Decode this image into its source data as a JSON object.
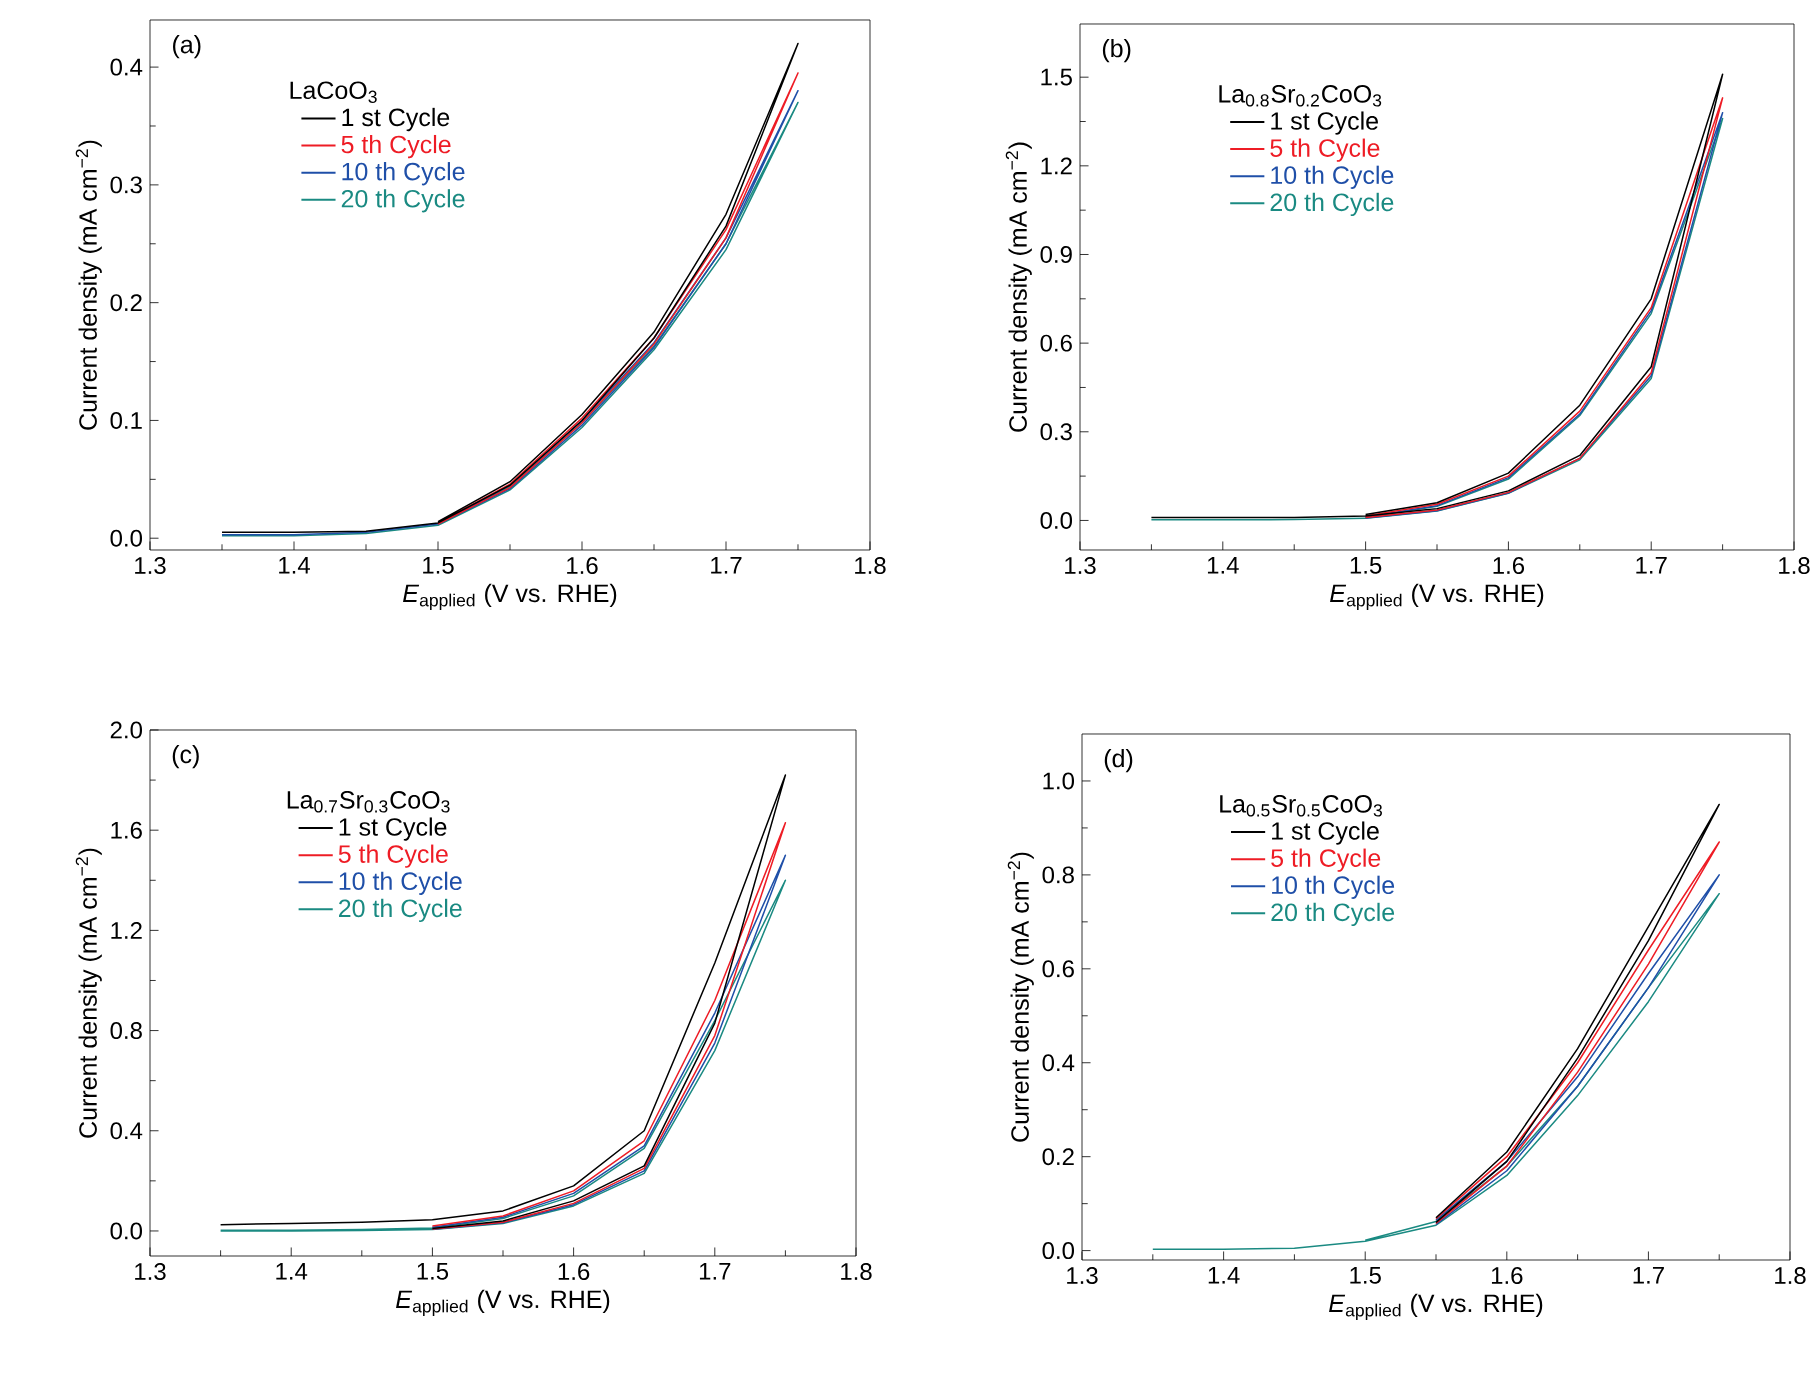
{
  "chart_data": [
    {
      "type": "line",
      "annotations": [
        "(a)"
      ],
      "legend_title": "LaCoO$_{3}$",
      "xlabel": "*E*$_{applied}$ (V vs. RHE)",
      "ylabel": "Current density (mA cm$^{−2}$)",
      "xlim": [
        1.3,
        1.8
      ],
      "ylim": [
        -0.01,
        0.44
      ],
      "xticks": [
        1.3,
        1.4,
        1.5,
        1.6,
        1.7,
        1.8
      ],
      "yticks": [
        {
          "value": 0,
          "label": "0.0"
        },
        0.1,
        0.2,
        0.3,
        0.4
      ],
      "legend": "top left",
      "line_style": "solid",
      "marker": "none",
      "x": [
        1.35,
        1.4,
        1.45,
        1.5,
        1.55,
        1.6,
        1.65,
        1.7,
        1.75,
        1.7,
        1.65,
        1.6,
        1.55,
        1.5
      ],
      "series": [
        {
          "name": "1 st Cycle",
          "color": "#000000",
          "values": [
            0.005,
            0.005,
            0.006,
            0.013,
            0.045,
            0.1,
            0.17,
            0.265,
            0.42,
            0.275,
            0.175,
            0.105,
            0.048,
            0.014
          ]
        },
        {
          "name": "5 th Cycle",
          "color": "#ee1c25",
          "values": [
            null,
            null,
            null,
            0.012,
            0.043,
            0.098,
            0.165,
            0.255,
            0.395,
            0.262,
            0.17,
            0.102,
            0.046,
            0.013
          ]
        },
        {
          "name": "10 th Cycle",
          "color": "#1f4fa8",
          "values": [
            0.003,
            0.003,
            0.005,
            0.012,
            0.042,
            0.096,
            0.162,
            0.25,
            0.38,
            0.255,
            0.166,
            0.1,
            0.045,
            0.012
          ]
        },
        {
          "name": "20 th Cycle",
          "color": "#1a8a82",
          "values": [
            0.002,
            0.002,
            0.004,
            0.011,
            0.041,
            0.094,
            0.16,
            0.245,
            0.37,
            0.25,
            0.163,
            0.098,
            0.044,
            0.011
          ]
        }
      ]
    },
    {
      "type": "line",
      "annotations": [
        "(b)"
      ],
      "legend_title": "La$_{0.8}$Sr$_{0.2}$CoO$_{3}$",
      "xlabel": "*E*$_{applied}$ (V vs. RHE)",
      "ylabel": "Current density (mA cm$^{−2}$)",
      "xlim": [
        1.3,
        1.8
      ],
      "ylim": [
        -0.1,
        1.68
      ],
      "xticks": [
        1.3,
        1.4,
        1.5,
        1.6,
        1.7,
        1.8
      ],
      "yticks": [
        {
          "value": 0,
          "label": "0.0"
        },
        0.3,
        0.6,
        0.9,
        1.2,
        1.5
      ],
      "legend": "top left",
      "line_style": "solid",
      "marker": "none",
      "x": [
        1.35,
        1.4,
        1.45,
        1.5,
        1.55,
        1.6,
        1.65,
        1.7,
        1.75,
        1.7,
        1.65,
        1.6,
        1.55,
        1.5
      ],
      "series": [
        {
          "name": "1 st Cycle",
          "color": "#000000",
          "values": [
            0.01,
            0.01,
            0.01,
            0.015,
            0.04,
            0.1,
            0.22,
            0.52,
            1.51,
            0.75,
            0.39,
            0.16,
            0.06,
            0.02
          ]
        },
        {
          "name": "5 th Cycle",
          "color": "#ee1c25",
          "values": [
            null,
            null,
            null,
            0.01,
            0.035,
            0.095,
            0.21,
            0.5,
            1.43,
            0.72,
            0.37,
            0.15,
            0.055,
            0.015
          ]
        },
        {
          "name": "10 th Cycle",
          "color": "#1f4fa8",
          "values": [
            null,
            null,
            null,
            0.008,
            0.033,
            0.093,
            0.21,
            0.49,
            1.38,
            0.71,
            0.36,
            0.145,
            0.05,
            0.012
          ]
        },
        {
          "name": "20 th Cycle",
          "color": "#1a8a82",
          "values": [
            0.002,
            0.002,
            0.003,
            0.007,
            0.032,
            0.092,
            0.205,
            0.48,
            1.36,
            0.7,
            0.355,
            0.14,
            0.048,
            0.01
          ]
        }
      ]
    },
    {
      "type": "line",
      "annotations": [
        "(c)"
      ],
      "legend_title": "La$_{0.7}$Sr$_{0.3}$CoO$_{3}$",
      "xlabel": "*E*$_{applied}$ (V vs. RHE)",
      "ylabel": "Current density (mA cm$^{−2}$)",
      "xlim": [
        1.3,
        1.8
      ],
      "ylim": [
        -0.1,
        2.0
      ],
      "xticks": [
        1.3,
        1.4,
        1.5,
        1.6,
        1.7,
        1.8
      ],
      "yticks": [
        {
          "value": 0,
          "label": "0.0"
        },
        0.4,
        0.8,
        1.2,
        1.6,
        {
          "value": 2,
          "label": "2.0"
        }
      ],
      "legend": "top left",
      "line_style": "solid",
      "marker": "none",
      "x": [
        1.35,
        1.4,
        1.45,
        1.5,
        1.55,
        1.6,
        1.65,
        1.7,
        1.75,
        1.7,
        1.65,
        1.6,
        1.55,
        1.5,
        1.45,
        1.4,
        1.35
      ],
      "series": [
        {
          "name": "1 st Cycle",
          "color": "#000000",
          "values": [
            null,
            null,
            null,
            0.01,
            0.04,
            0.12,
            0.26,
            0.83,
            1.82,
            1.07,
            0.4,
            0.18,
            0.08,
            0.045,
            0.035,
            0.03,
            0.025
          ]
        },
        {
          "name": "5 th Cycle",
          "color": "#ee1c25",
          "values": [
            null,
            null,
            null,
            0.008,
            0.035,
            0.11,
            0.25,
            0.78,
            1.63,
            0.92,
            0.36,
            0.16,
            0.06,
            0.02,
            null,
            null,
            null
          ]
        },
        {
          "name": "10 th Cycle",
          "color": "#1f4fa8",
          "values": [
            null,
            null,
            null,
            0.007,
            0.033,
            0.105,
            0.24,
            0.75,
            1.5,
            0.87,
            0.34,
            0.15,
            0.055,
            0.015,
            null,
            null,
            null
          ]
        },
        {
          "name": "20 th Cycle",
          "color": "#1a8a82",
          "values": [
            0.0,
            0.0,
            0.002,
            0.006,
            0.03,
            0.1,
            0.23,
            0.72,
            1.4,
            0.84,
            0.33,
            0.14,
            0.05,
            0.012,
            0.006,
            0.003,
            0.003
          ]
        }
      ]
    },
    {
      "type": "line",
      "annotations": [
        "(d)"
      ],
      "legend_title": "La$_{0.5}$Sr$_{0.5}$CoO$_{3}$",
      "xlabel": "*E*$_{applied}$ (V vs. RHE)",
      "ylabel": "Current density (mA cm$^{−2}$)",
      "xlim": [
        1.3,
        1.8
      ],
      "ylim": [
        -0.02,
        1.1
      ],
      "xticks": [
        1.3,
        1.4,
        1.5,
        1.6,
        1.7,
        1.8
      ],
      "yticks": [
        {
          "value": 0,
          "label": "0.0"
        },
        0.2,
        0.4,
        0.6,
        0.8,
        {
          "value": 1,
          "label": "1.0"
        }
      ],
      "legend": "top left",
      "line_style": "solid",
      "marker": "none",
      "x": [
        1.35,
        1.4,
        1.45,
        1.5,
        1.55,
        1.6,
        1.65,
        1.7,
        1.75,
        1.7,
        1.65,
        1.6,
        1.55,
        1.5
      ],
      "series": [
        {
          "name": "1 st Cycle",
          "color": "#000000",
          "values": [
            null,
            null,
            null,
            null,
            0.06,
            0.19,
            0.41,
            0.66,
            0.95,
            0.69,
            0.43,
            0.21,
            0.07,
            null
          ]
        },
        {
          "name": "5 th Cycle",
          "color": "#ee1c25",
          "values": [
            null,
            null,
            null,
            null,
            0.058,
            0.18,
            0.38,
            0.61,
            0.87,
            0.64,
            0.4,
            0.2,
            0.068,
            null
          ]
        },
        {
          "name": "10 th Cycle",
          "color": "#1f4fa8",
          "values": [
            null,
            null,
            null,
            null,
            0.056,
            0.17,
            0.35,
            0.56,
            0.8,
            0.59,
            0.37,
            0.19,
            0.065,
            null
          ]
        },
        {
          "name": "20 th Cycle",
          "color": "#1a8a82",
          "values": [
            0.003,
            0.003,
            0.005,
            0.02,
            0.054,
            0.16,
            0.33,
            0.53,
            0.76,
            0.56,
            0.35,
            0.18,
            0.062,
            0.022
          ]
        }
      ]
    }
  ]
}
